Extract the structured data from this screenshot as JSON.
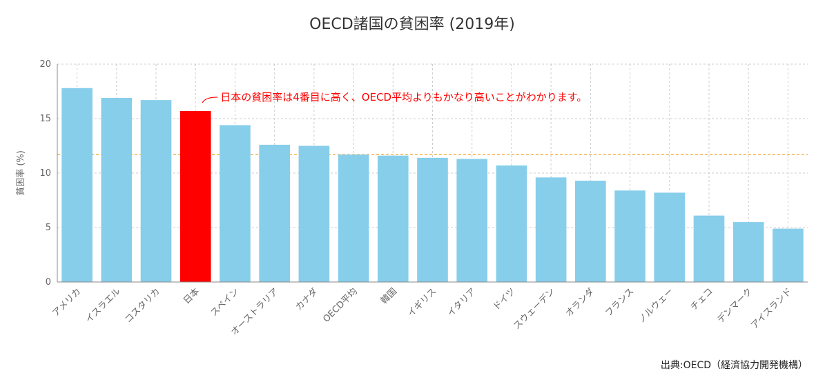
{
  "chart_data": {
    "type": "bar",
    "title": "OECD諸国の貧困率 (2019年)",
    "ylabel": "貧困率 (%)",
    "xlabel": "",
    "ylim": [
      0,
      20
    ],
    "yticks": [
      0,
      5,
      10,
      15,
      20
    ],
    "categories": [
      "アメリカ",
      "イスラエル",
      "コスタリカ",
      "日本",
      "スペイン",
      "オーストラリア",
      "カナダ",
      "OECD平均",
      "韓国",
      "イギリス",
      "イタリア",
      "ドイツ",
      "スウェーデン",
      "オランダ",
      "フランス",
      "ノルウェー",
      "チェコ",
      "デンマーク",
      "アイスランド"
    ],
    "values": [
      17.8,
      16.9,
      16.7,
      15.7,
      14.4,
      12.6,
      12.5,
      11.7,
      11.6,
      11.4,
      11.3,
      10.7,
      9.6,
      9.3,
      8.4,
      8.2,
      6.1,
      5.5,
      4.9
    ],
    "highlight_category": "日本",
    "reference_line": {
      "value": 11.7,
      "color": "#f5a623"
    },
    "annotation": {
      "text": "日本の貧困率は4番目に高く、OECD平均よりもかなり高いことがわかります。",
      "target_category": "日本",
      "color": "#ff0000"
    },
    "grid": true,
    "colors": {
      "bar": "#87ceeb",
      "highlight": "#ff0000",
      "grid": "#cccccc",
      "axis": "#888888"
    },
    "source": "出典:OECD（経済協力開発機構）"
  }
}
